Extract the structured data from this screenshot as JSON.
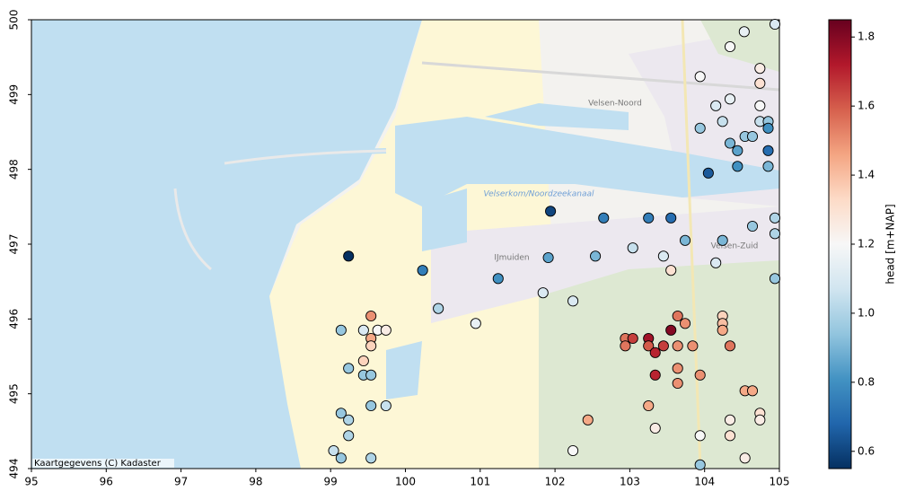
{
  "chart_data": {
    "type": "scatter",
    "xlim": [
      95,
      105
    ],
    "ylim": [
      494,
      500
    ],
    "xticks": [
      95,
      96,
      97,
      98,
      99,
      100,
      101,
      102,
      103,
      104,
      105
    ],
    "yticks": [
      494,
      495,
      496,
      497,
      498,
      499,
      500
    ],
    "colormap": "RdBu_r",
    "colorbar": {
      "label": "head [m+NAP]",
      "lim": [
        0.55,
        1.85
      ],
      "ticks": [
        0.6,
        0.8,
        {
          "value": 1,
          "label": "1.0"
        },
        1.2,
        1.4,
        1.6,
        1.8
      ]
    },
    "attribution": "Kaartgegevens (C) Kadaster",
    "map_labels": [
      "Velsen-Noord",
      "IJmuiden",
      "Velsen-Zuid",
      "Velserkom/Noordzeekanaal"
    ],
    "x": [
      104.94,
      104.53,
      104.34,
      104.74,
      104.74,
      103.94,
      104.34,
      104.15,
      104.74,
      104.74,
      104.24,
      104.85,
      104.85,
      103.94,
      104.34,
      104.54,
      104.64,
      104.44,
      104.85,
      104.44,
      104.85,
      104.05,
      101.94,
      102.65,
      103.25,
      103.55,
      104.94,
      104.64,
      104.94,
      104.24,
      103.74,
      103.04,
      103.45,
      102.54,
      101.91,
      104.15,
      103.55,
      99.24,
      100.23,
      101.24,
      104.94,
      101.84,
      102.24,
      100.44,
      100.94,
      99.54,
      103.64,
      104.24,
      104.24,
      103.74,
      104.24,
      103.55,
      99.14,
      99.44,
      99.63,
      99.74,
      99.54,
      99.54,
      102.94,
      103.04,
      102.94,
      103.25,
      103.25,
      103.45,
      103.34,
      103.64,
      103.84,
      104.34,
      99.44,
      99.24,
      99.44,
      99.54,
      103.64,
      103.34,
      103.94,
      103.64,
      104.54,
      104.64,
      99.54,
      99.74,
      103.25,
      99.14,
      99.24,
      104.74,
      104.74,
      104.34,
      102.44,
      99.24,
      103.34,
      103.94,
      104.34,
      99.04,
      102.24,
      99.14,
      99.54,
      104.54,
      103.94
    ],
    "y": [
      499.94,
      499.84,
      499.64,
      499.35,
      499.15,
      499.24,
      498.94,
      498.85,
      498.85,
      498.64,
      498.64,
      498.64,
      498.55,
      498.55,
      498.35,
      498.44,
      498.44,
      498.25,
      498.25,
      498.04,
      498.04,
      497.95,
      497.44,
      497.35,
      497.35,
      497.35,
      497.35,
      497.24,
      497.14,
      497.05,
      497.05,
      496.95,
      496.84,
      496.84,
      496.82,
      496.75,
      496.65,
      496.84,
      496.65,
      496.54,
      496.54,
      496.35,
      496.24,
      496.14,
      495.94,
      496.04,
      496.04,
      496.04,
      495.94,
      495.94,
      495.85,
      495.85,
      495.85,
      495.85,
      495.85,
      495.85,
      495.74,
      495.64,
      495.74,
      495.74,
      495.64,
      495.74,
      495.64,
      495.64,
      495.55,
      495.64,
      495.64,
      495.64,
      495.44,
      495.34,
      495.25,
      495.25,
      495.34,
      495.25,
      495.25,
      495.14,
      495.04,
      495.04,
      494.84,
      494.84,
      494.84,
      494.74,
      494.65,
      494.74,
      494.65,
      494.65,
      494.65,
      494.44,
      494.54,
      494.44,
      494.44,
      494.24,
      494.24,
      494.14,
      494.14,
      494.14,
      494.05
    ],
    "values": [
      1.1,
      1.15,
      1.2,
      1.25,
      1.3,
      1.2,
      1.15,
      1.1,
      1.2,
      1.05,
      1.05,
      0.95,
      0.8,
      0.95,
      0.9,
      0.95,
      0.95,
      0.85,
      0.7,
      0.8,
      0.9,
      0.65,
      0.6,
      0.75,
      0.75,
      0.7,
      1.0,
      0.95,
      1.0,
      0.9,
      0.9,
      1.05,
      1.1,
      0.9,
      0.85,
      1.1,
      1.3,
      0.55,
      0.75,
      0.8,
      0.95,
      1.1,
      1.1,
      1.0,
      1.15,
      1.5,
      1.55,
      1.35,
      1.4,
      1.5,
      1.45,
      1.8,
      0.95,
      1.1,
      1.2,
      1.25,
      1.45,
      1.35,
      1.55,
      1.65,
      1.55,
      1.75,
      1.6,
      1.65,
      1.7,
      1.5,
      1.5,
      1.55,
      1.35,
      0.95,
      0.95,
      0.95,
      1.5,
      1.7,
      1.5,
      1.5,
      1.45,
      1.45,
      0.95,
      1.05,
      1.45,
      0.95,
      1.0,
      1.3,
      1.25,
      1.25,
      1.45,
      1.0,
      1.25,
      1.2,
      1.3,
      1.05,
      1.2,
      0.95,
      1.0,
      1.25,
      0.95
    ]
  }
}
